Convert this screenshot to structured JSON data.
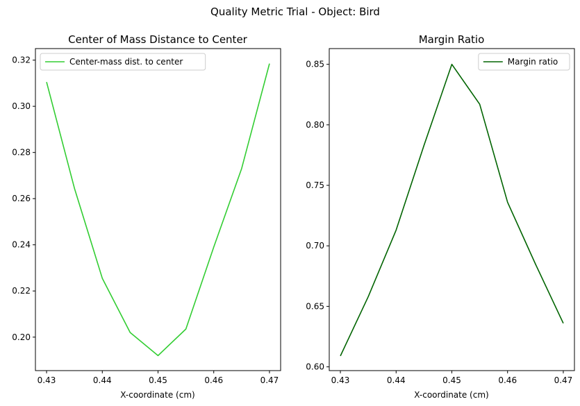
{
  "figure": {
    "suptitle": "Quality Metric Trial - Object: Bird"
  },
  "chart_data": [
    {
      "type": "line",
      "title": "Center of Mass Distance to Center",
      "xlabel": "X-coordinate (cm)",
      "ylabel": "",
      "x": [
        0.43,
        0.435,
        0.44,
        0.445,
        0.45,
        0.455,
        0.46,
        0.465,
        0.47
      ],
      "series": [
        {
          "name": "Center-mass dist. to center",
          "color": "#32cd32",
          "values": [
            0.3105,
            0.2645,
            0.2255,
            0.202,
            0.192,
            0.2035,
            0.239,
            0.273,
            0.3185
          ]
        }
      ],
      "xlim": [
        0.428,
        0.472
      ],
      "ylim": [
        0.1855,
        0.325
      ],
      "xticks": [
        0.43,
        0.44,
        0.45,
        0.46,
        0.47
      ],
      "xtick_labels": [
        "0.43",
        "0.44",
        "0.45",
        "0.46",
        "0.47"
      ],
      "yticks": [
        0.2,
        0.22,
        0.24,
        0.26,
        0.28,
        0.3,
        0.32
      ],
      "ytick_labels": [
        "0.20",
        "0.22",
        "0.24",
        "0.26",
        "0.28",
        "0.30",
        "0.32"
      ],
      "grid": false,
      "legend": "top-left"
    },
    {
      "type": "line",
      "title": "Margin Ratio",
      "xlabel": "X-coordinate (cm)",
      "ylabel": "",
      "x": [
        0.43,
        0.435,
        0.44,
        0.445,
        0.45,
        0.455,
        0.46,
        0.465,
        0.47
      ],
      "series": [
        {
          "name": "Margin ratio",
          "color": "#006400",
          "values": [
            0.609,
            0.658,
            0.713,
            0.783,
            0.85,
            0.817,
            0.736,
            0.685,
            0.636
          ]
        }
      ],
      "xlim": [
        0.428,
        0.472
      ],
      "ylim": [
        0.5969,
        0.863
      ],
      "xticks": [
        0.43,
        0.44,
        0.45,
        0.46,
        0.47
      ],
      "xtick_labels": [
        "0.43",
        "0.44",
        "0.45",
        "0.46",
        "0.47"
      ],
      "yticks": [
        0.6,
        0.65,
        0.7,
        0.75,
        0.8,
        0.85
      ],
      "ytick_labels": [
        "0.60",
        "0.65",
        "0.70",
        "0.75",
        "0.80",
        "0.85"
      ],
      "grid": false,
      "legend": "top-right"
    }
  ]
}
